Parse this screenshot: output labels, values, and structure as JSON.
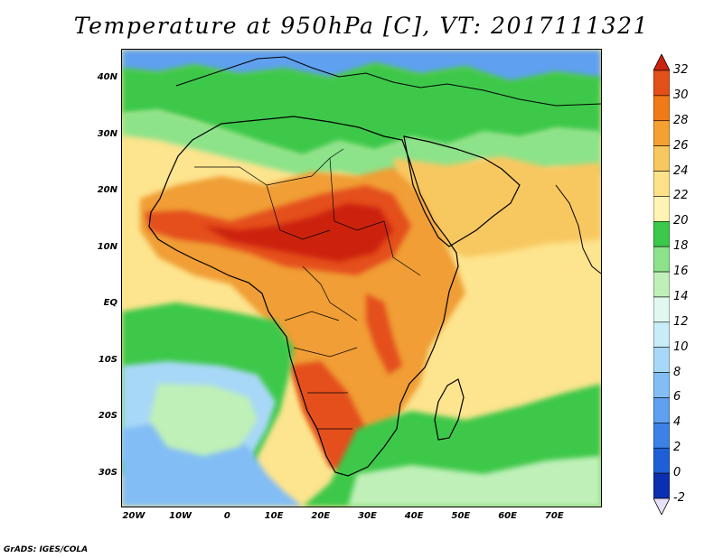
{
  "title": "Temperature at 950hPa [C], VT: 2017111321",
  "credit": "GrADS: IGES/COLA",
  "axes": {
    "lat_labels": [
      {
        "label": "40N",
        "lat": 40
      },
      {
        "label": "30N",
        "lat": 30
      },
      {
        "label": "20N",
        "lat": 20
      },
      {
        "label": "10N",
        "lat": 10
      },
      {
        "label": "EQ",
        "lat": 0
      },
      {
        "label": "10S",
        "lat": -10
      },
      {
        "label": "20S",
        "lat": -20
      },
      {
        "label": "30S",
        "lat": -30
      }
    ],
    "lon_labels": [
      {
        "label": "20W",
        "lon": -20
      },
      {
        "label": "10W",
        "lon": -10
      },
      {
        "label": "0",
        "lon": 0
      },
      {
        "label": "10E",
        "lon": 10
      },
      {
        "label": "20E",
        "lon": 20
      },
      {
        "label": "30E",
        "lon": 30
      },
      {
        "label": "40E",
        "lon": 40
      },
      {
        "label": "50E",
        "lon": 50
      },
      {
        "label": "60E",
        "lon": 60
      },
      {
        "label": "70E",
        "lon": 70
      }
    ],
    "lon_range": [
      -22.5,
      80
    ],
    "lat_range": [
      -36,
      45
    ]
  },
  "colorbar": {
    "levels": [
      "-2",
      "0",
      "2",
      "4",
      "6",
      "8",
      "10",
      "12",
      "14",
      "16",
      "18",
      "20",
      "22",
      "24",
      "26",
      "28",
      "30",
      "32"
    ],
    "colors": [
      "#000080",
      "#0a2fb0",
      "#1e5fd8",
      "#3c82e6",
      "#5fa0f0",
      "#82bef5",
      "#a8d8f7",
      "#c8ecf8",
      "#e0f8f0",
      "#bff0b8",
      "#8de38a",
      "#3cc84a",
      "#fff4b4",
      "#fde28a",
      "#f8c860",
      "#f5a033",
      "#f07a18",
      "#e4501a",
      "#cc2410"
    ]
  },
  "map_fields": {
    "ocean_color": "#fde48e",
    "land_colors": {
      "saharan_belt": "#f09e34",
      "sahel_hot": "#e4501a",
      "sahel_hotter": "#cc2410",
      "east_africa": "#f0a033",
      "mediterranean": "#8de38a",
      "med_cool": "#3cc84a",
      "north_cold": "#5fa0f0",
      "south_atlantic_warm": "#bff0b8",
      "south_atlantic_cool": "#a8d8f7",
      "south_atlantic_cold": "#82bef5",
      "south_indian_green": "#3cc84a",
      "arabia": "#f8c860"
    }
  }
}
